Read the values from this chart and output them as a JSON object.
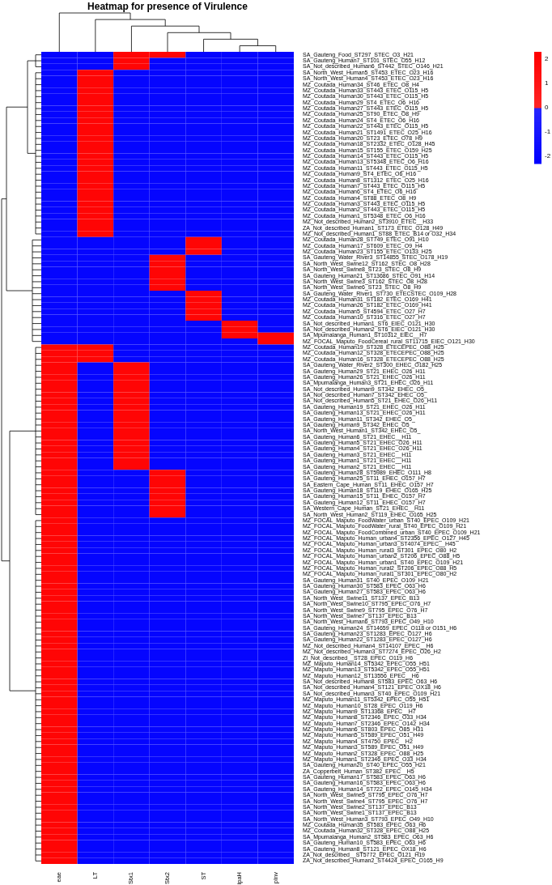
{
  "chart_data": {
    "type": "heatmap",
    "title": "Heatmap for presence of Virulence",
    "categories": [
      "eae",
      "LT",
      "Stx1",
      "Stx2",
      "ST",
      "ipaH",
      "pInv"
    ],
    "y_categories": [
      "SA_Gauteng_Food_ST297_STEC_O3_H21",
      "SA_Gauteng_Human7_ST101_STEC_O55_H12",
      "SA_Not_described_Human6_ST442_STEC_O146_H21",
      "SA_North_West_Human5_ST453_ETEC_O23_H16",
      "SA_North_West_Human4_ST453_ETEC_O23_H16",
      "MZ_Coutada_Human34_ST46_ETEC_O8_H4",
      "MZ_Coutada_Human33_ST443_ETEC_O115_H5",
      "MZ_Coutada_Human30_ST443_ETEC_O115_H5",
      "MZ_Coutada_Human29_ST4_ETEC_O6_H16",
      "MZ_Coutada_Human27_ST443_ETEC_O115_H5",
      "MZ_Coutada_Human25_ST90_ETEC_O8_H9",
      "MZ_Coutada_Human24_ST4_ETEC_O6_H16",
      "MZ_Coutada_Human22_ST443_ETEC_O115_H5",
      "MZ_Coutada_Human21_ST1491_ETEC_O25_H16",
      "MZ_Coutada_Human20_ST23_ETEC_O78_H9",
      "MZ_Coutada_Human18_ST2332_ETEC_O128_H45",
      "MZ_Coutada_Human15_ST155_ETEC_O159_H25",
      "MZ_Coutada_Human14_ST443_ETEC_O115_H5",
      "MZ_Coutada_Human13_ST5348_ETEC_O6_H16",
      "MZ_Coutada_Human11_ST443_ETEC_O115_H5",
      "MZ_Coutada_Human9_ST4_ETEC_O6_H16",
      "MZ_Coutada_Human8_ST1312_ETEC_O25_H16",
      "MZ_Coutada_Human7_ST443_ETEC_O115_H5",
      "MZ_Coutada_Human6_ST4_ETEC_O6_H16",
      "MZ_Coutada_Human4_ST88_ETEC_O8_H9",
      "MZ_Coutada_Human3_ST443_ETEC_O115_H5",
      "MZ_Coutada_Human2_ST443_ETEC_O115_H5",
      "MZ_Coutada_Human1_ST5348_ETEC_O6_H16",
      "MZ_Not_described_Human2_ST3910_ETEC__H33",
      "ZA_Not_described_Human1_ST173_ETEC_O128_H49",
      "MZ_Not_described_Human1_ST88_ETEC_B14 or O32_H34",
      "MZ_Coutada_Human28_ST749_ETEC_O91_H10",
      "MZ_Coutada_Human17_ST609_ETEC_O9_H4",
      "MZ_Coutada_Human23_ST155_ETEC_O133_H25",
      "SA_Gauteng_Water_River3_ST14855_STEC_O178_H19",
      "SA_North_West_Swine12_ST162_STEC_O8_H28",
      "SA_North_West_Swine8_ST23_STEC_O8_H9",
      "SA_Gauteng_Human21_ST13686_STEC_O91_H14",
      "SA_North_West_Swine3_ST162_STEC_O8_H28",
      "SA_North_West_Swine6_ST23_STEC_O8_H9",
      "SA_Gauteng_Water_River1_ST730_ETECSTEC_O109_H28",
      "MZ_Coutada_Human31_ST182_ETEC_O169_H41",
      "MZ_Coutada_Human26_ST182_ETEC_O169_H41",
      "MZ_Coutada_Human5_ST4594_ETEC_O27_H7",
      "MZ_Coutada_Human10_ST316_ETEC_O27_H7",
      "SA_Not_described_Human1_ST6_EIEC_O121_H30",
      "SA_Not_described_Human2_ST6_EIEC_O121_H30",
      "SA_Mpumalanga_Human1_ST10312_EIEC__H7",
      "MZ_FOCAL_Maputo_FoodCereal_rural_ST11715_EIEC_O121_H30",
      "MZ_Coutada_Human19_ST328_ETECEPEC_O88_H25",
      "MZ_Coutada_Human12_ST328_ETECEPEC_O88_H25",
      "MZ_Coutada_Human16_ST328_ETECEPEC_O88_H25",
      "SA_Gauteng_Water_River2_ST300_EHEC_O182_H25",
      "SA_Gauteng_Human29_ST21_EHEC_O26_H11",
      "SA_Gauteng_Human26_ST21_EHEC_O26_H11",
      "SA_Mpumalanga_Human3_ST21_EHEC_O26_H11",
      "SA_Not_described_Human9_ST342_EHEC_O5_",
      "SA_Not_described_Human7_ST342_EHEC_O5_",
      "SA_Not_described_Human5_ST21_EHEC_O26_H11",
      "SA_Gauteng_Human19_ST21_EHEC_O26_H11",
      "SA_Gauteng_Human13_ST21_EHEC_O26_H11",
      "SA_Gauteng_Human11_ST342_EHEC_O5_",
      "SA_Gauteng_Human9_ST342_EHEC_O5_",
      "SA_North_West_Human1_ST342_EHEC_O5_",
      "SA_Gauteng_Human6_ST21_EHEC__H11",
      "SA_Gauteng_Human5_ST21_EHEC_O26_H11",
      "SA_Gauteng_Human4_ST21_EHEC_O26_H11",
      "SA_Gauteng_Human3_ST21_EHEC__H11",
      "SA_Gauteng_Human1_ST21_EHEC__H11",
      "SA_Gauteng_Human2_ST21_EHEC__H11",
      "SA_Gauteng_Human28_ST5989_EHEC_O111_H8",
      "SA_Gauteng_Human25_ST11_EHEC_O157_H7",
      "SA_Eastern_Cape_Human_ST11_EHEC_O157_H7",
      "SA_Gauteng_Human18_ST119_EHEC_O165_H25",
      "SA_Gauteng_Human15_ST11_EHEC_O157_H7",
      "SA_Gauteng_Human12_ST11_EHEC_O157_H7",
      "SA_Western_Cape_Human_ST21_EHEC__H11",
      "SA_North_West_Human2_ST119_EHEC_O165_H25",
      "MZ_FOCAL_Maputo_FoodWater_urban_ST40_EPEC_O109_H21",
      "MZ_FOCAL_Maputo_FoodWater_rural_ST40_EPEC_O109_H21",
      "MZ_FOCAL_Maputo_FoodCombined_urban_ST40_EPEC_O109_H21",
      "MZ_FOCAL_Maputo_Human_urban4_ST2356_EPEC_O127_H45",
      "MZ_FOCAL_Maputo_Human_urban3_ST4074_EPEC__H45",
      "MZ_FOCAL_Maputo_Human_rural3_ST301_EPEC_O80_H2",
      "MZ_FOCAL_Maputo_Human_urban2_ST206_EPEC_O88_H5",
      "MZ_FOCAL_Maputo_Human_urban1_ST40_EPEC_O109_H21",
      "MZ_FOCAL_Maputo_Human_rural2_ST206_EPEC_O88_H5",
      "MZ_FOCAL_Maputo_Human_rural1_ST301_EPEC_O80_H2",
      "SA_Gauteng_Human31_ST40_EPEC_O109_H21",
      "SA_Gauteng_Human30_ST583_EPEC_O63_H6",
      "SA_Gauteng_Human27_ST583_EPEC_O63_H6",
      "SA_North_West_Swine11_ST137_EPEC_B13",
      "SA_North_West_Swine10_ST795_EPEC_O76_H7",
      "SA_North_West_Swine9_ST795_EPEC_O76_H7",
      "SA_North_West_Swine7_ST137_EPEC_B13",
      "SA_North_West_Human6_ST793_EPEC_O49_H10",
      "SA_Gauteng_Human24_ST14659_EPEC_O118 or O151_H6",
      "SA_Gauteng_Human23_ST1283_EPEC_O127_H6",
      "SA_Gauteng_Human22_ST1283_EPEC_O127_H6",
      "MZ_Not_described_Human4_ST14107_EPEC__H6",
      "MZ_Not_described_Human3_ST7274_EPEC_O26_H2",
      "ZI_Not_described__ST28_EPEC_O119_H6",
      "MZ_Maputo_Human14_ST5342_EPEC_O55_H51",
      "MZ_Maputo_Human13_ST5342_EPEC_O55_H51",
      "MZ_Maputo_Human12_ST13556_EPEC__H6",
      "SA_Not_described_Human8_ST583_EPEC_O63_H6",
      "SA_Not_described_Human4_ST121_EPEC_OX18_H6",
      "SA_Not_described_Human3_ST40_EPEC_O109_H21",
      "MZ_Maputo_Human11_ST5342_EPEC_O55_H51",
      "MZ_Maputo_Human10_ST28_EPEC_O119_H6",
      "MZ_Maputo_Human9_ST13368_EPEC__H7",
      "MZ_Maputo_Human8_ST2346_EPEC_O33_H34",
      "MZ_Maputo_Human7_ST2346_EPEC_O142_H34",
      "MZ_Maputo_Human6_ST803_EPEC_O85_H31",
      "MZ_Maputo_Human5_ST589_EPEC_O51_H49",
      "MZ_Maputo_Human4_ST4750_EPEC__H2",
      "MZ_Maputo_Human3_ST589_EPEC_O51_H49",
      "MZ_Maputo_Human2_ST328_EPEC_O88_H25",
      "MZ_Maputo_Human1_ST2346_EPEC_O33_H34",
      "SA_Gauteng_Human20_ST40_EPEC_O55_H21",
      "ZA_Copperbelt_Human_ST382_EPEC__H5",
      "SA_Gauteng_Human17_ST583_EPEC_O63_H6",
      "SA_Gauteng_Human16_ST583_EPEC_O63_H6",
      "SA_Gauteng_Human14_ST722_EPEC_O145_H34",
      "SA_North_West_Swine5_ST795_EPEC_O76_H7",
      "SA_North_West_Swine4_ST795_EPEC_O76_H7",
      "SA_North_West_Swine2_ST137_EPEC_B13",
      "SA_North_West_Swine1_ST137_EPEC_B13",
      "SA_North_West_Human3_ST793_EPEC_O49_H10",
      "MZ_Coutada_Human35_ST583_EPEC_O63_H6",
      "MZ_Coutada_Human32_ST328_EPEC_O88_H25",
      "SA_Mpumalanga_Human2_ST583_EPEC_O63_H6",
      "SA_Gauteng_Human10_ST583_EPEC_O63_H6",
      "SA_Gauteng_Human8_ST121_EPEC_OX18_H6",
      "ZA_Not_described__ST5772_EPEC_O121_H19",
      "ZA_Not_described_Human2_ST4424_EPEC_O165_H9"
    ],
    "cells": [
      [
        -2,
        -2,
        2,
        2,
        -2,
        -2,
        -2
      ],
      [
        -2,
        -2,
        2,
        -2,
        -2,
        -2,
        -2
      ],
      [
        -2,
        -2,
        2,
        -2,
        -2,
        -2,
        -2
      ],
      [
        -2,
        2,
        -2,
        -2,
        -2,
        -2,
        -2
      ],
      [
        -2,
        2,
        -2,
        -2,
        -2,
        -2,
        -2
      ],
      [
        -2,
        2,
        -2,
        -2,
        -2,
        -2,
        -2
      ],
      [
        -2,
        2,
        -2,
        -2,
        -2,
        -2,
        -2
      ],
      [
        -2,
        2,
        -2,
        -2,
        -2,
        -2,
        -2
      ],
      [
        -2,
        2,
        -2,
        -2,
        -2,
        -2,
        -2
      ],
      [
        -2,
        2,
        -2,
        -2,
        -2,
        -2,
        -2
      ],
      [
        -2,
        2,
        -2,
        -2,
        -2,
        -2,
        -2
      ],
      [
        -2,
        2,
        -2,
        -2,
        -2,
        -2,
        -2
      ],
      [
        -2,
        2,
        -2,
        -2,
        -2,
        -2,
        -2
      ],
      [
        -2,
        2,
        -2,
        -2,
        -2,
        -2,
        -2
      ],
      [
        -2,
        2,
        -2,
        -2,
        -2,
        -2,
        -2
      ],
      [
        -2,
        2,
        -2,
        -2,
        -2,
        -2,
        -2
      ],
      [
        -2,
        2,
        -2,
        -2,
        -2,
        -2,
        -2
      ],
      [
        -2,
        2,
        -2,
        -2,
        -2,
        -2,
        -2
      ],
      [
        -2,
        2,
        -2,
        -2,
        -2,
        -2,
        -2
      ],
      [
        -2,
        2,
        -2,
        -2,
        -2,
        -2,
        -2
      ],
      [
        -2,
        2,
        -2,
        -2,
        -2,
        -2,
        -2
      ],
      [
        -2,
        2,
        -2,
        -2,
        -2,
        -2,
        -2
      ],
      [
        -2,
        2,
        -2,
        -2,
        -2,
        -2,
        -2
      ],
      [
        -2,
        2,
        -2,
        -2,
        -2,
        -2,
        -2
      ],
      [
        -2,
        2,
        -2,
        -2,
        -2,
        -2,
        -2
      ],
      [
        -2,
        2,
        -2,
        -2,
        -2,
        -2,
        -2
      ],
      [
        -2,
        2,
        -2,
        -2,
        -2,
        -2,
        -2
      ],
      [
        -2,
        2,
        -2,
        -2,
        -2,
        -2,
        -2
      ],
      [
        -2,
        2,
        -2,
        -2,
        -2,
        -2,
        -2
      ],
      [
        -2,
        2,
        -2,
        -2,
        -2,
        -2,
        -2
      ],
      [
        -2,
        2,
        -2,
        -2,
        -2,
        -2,
        -2
      ],
      [
        -2,
        -2,
        -2,
        -2,
        2,
        -2,
        -2
      ],
      [
        -2,
        -2,
        -2,
        -2,
        2,
        -2,
        -2
      ],
      [
        -2,
        -2,
        -2,
        -2,
        2,
        -2,
        -2
      ],
      [
        -2,
        -2,
        -2,
        2,
        -2,
        -2,
        -2
      ],
      [
        -2,
        -2,
        -2,
        2,
        -2,
        -2,
        -2
      ],
      [
        -2,
        -2,
        -2,
        2,
        -2,
        -2,
        -2
      ],
      [
        -2,
        -2,
        -2,
        2,
        -2,
        -2,
        -2
      ],
      [
        -2,
        -2,
        -2,
        2,
        -2,
        -2,
        -2
      ],
      [
        -2,
        -2,
        -2,
        2,
        -2,
        -2,
        -2
      ],
      [
        -2,
        -2,
        -2,
        -2,
        2,
        -2,
        -2
      ],
      [
        -2,
        -2,
        -2,
        -2,
        2,
        -2,
        -2
      ],
      [
        -2,
        -2,
        -2,
        -2,
        2,
        -2,
        -2
      ],
      [
        -2,
        -2,
        -2,
        -2,
        2,
        -2,
        -2
      ],
      [
        -2,
        -2,
        -2,
        -2,
        2,
        -2,
        -2
      ],
      [
        -2,
        -2,
        -2,
        -2,
        -2,
        2,
        -2
      ],
      [
        -2,
        -2,
        -2,
        -2,
        -2,
        2,
        -2
      ],
      [
        -2,
        -2,
        -2,
        -2,
        -2,
        2,
        2
      ],
      [
        -2,
        -2,
        -2,
        -2,
        -2,
        -2,
        2
      ],
      [
        2,
        2,
        -2,
        -2,
        -2,
        -2,
        -2
      ],
      [
        2,
        2,
        -2,
        -2,
        -2,
        -2,
        -2
      ],
      [
        2,
        2,
        -2,
        -2,
        -2,
        -2,
        -2
      ],
      [
        2,
        -2,
        2,
        -2,
        -2,
        -2,
        -2
      ],
      [
        2,
        -2,
        2,
        -2,
        -2,
        -2,
        -2
      ],
      [
        2,
        -2,
        2,
        -2,
        -2,
        -2,
        -2
      ],
      [
        2,
        -2,
        2,
        -2,
        -2,
        -2,
        -2
      ],
      [
        2,
        -2,
        2,
        -2,
        -2,
        -2,
        -2
      ],
      [
        2,
        -2,
        2,
        -2,
        -2,
        -2,
        -2
      ],
      [
        2,
        -2,
        2,
        -2,
        -2,
        -2,
        -2
      ],
      [
        2,
        -2,
        2,
        -2,
        -2,
        -2,
        -2
      ],
      [
        2,
        -2,
        2,
        -2,
        -2,
        -2,
        -2
      ],
      [
        2,
        -2,
        2,
        -2,
        -2,
        -2,
        -2
      ],
      [
        2,
        -2,
        2,
        -2,
        -2,
        -2,
        -2
      ],
      [
        2,
        -2,
        2,
        -2,
        -2,
        -2,
        -2
      ],
      [
        2,
        -2,
        2,
        -2,
        -2,
        -2,
        -2
      ],
      [
        2,
        -2,
        2,
        -2,
        -2,
        -2,
        -2
      ],
      [
        2,
        -2,
        2,
        -2,
        -2,
        -2,
        -2
      ],
      [
        2,
        -2,
        2,
        -2,
        -2,
        -2,
        -2
      ],
      [
        2,
        -2,
        2,
        -2,
        -2,
        -2,
        -2
      ],
      [
        2,
        -2,
        2,
        -2,
        -2,
        -2,
        -2
      ],
      [
        2,
        -2,
        -2,
        2,
        -2,
        -2,
        -2
      ],
      [
        2,
        -2,
        -2,
        2,
        -2,
        -2,
        -2
      ],
      [
        2,
        -2,
        -2,
        2,
        -2,
        -2,
        -2
      ],
      [
        2,
        -2,
        -2,
        2,
        -2,
        -2,
        -2
      ],
      [
        2,
        -2,
        -2,
        2,
        -2,
        -2,
        -2
      ],
      [
        2,
        -2,
        -2,
        2,
        -2,
        -2,
        -2
      ],
      [
        2,
        -2,
        -2,
        2,
        -2,
        -2,
        -2
      ],
      [
        2,
        -2,
        -2,
        2,
        -2,
        -2,
        -2
      ],
      [
        2,
        -2,
        -2,
        -2,
        -2,
        -2,
        -2
      ],
      [
        2,
        -2,
        -2,
        -2,
        -2,
        -2,
        -2
      ],
      [
        2,
        -2,
        -2,
        -2,
        -2,
        -2,
        -2
      ],
      [
        2,
        -2,
        -2,
        -2,
        -2,
        -2,
        -2
      ],
      [
        2,
        -2,
        -2,
        -2,
        -2,
        -2,
        -2
      ],
      [
        2,
        -2,
        -2,
        -2,
        -2,
        -2,
        -2
      ],
      [
        2,
        -2,
        -2,
        -2,
        -2,
        -2,
        -2
      ],
      [
        2,
        -2,
        -2,
        -2,
        -2,
        -2,
        -2
      ],
      [
        2,
        -2,
        -2,
        -2,
        -2,
        -2,
        -2
      ],
      [
        2,
        -2,
        -2,
        -2,
        -2,
        -2,
        -2
      ],
      [
        2,
        -2,
        -2,
        -2,
        -2,
        -2,
        -2
      ],
      [
        2,
        -2,
        -2,
        -2,
        -2,
        -2,
        -2
      ],
      [
        2,
        -2,
        -2,
        -2,
        -2,
        -2,
        -2
      ],
      [
        2,
        -2,
        -2,
        -2,
        -2,
        -2,
        -2
      ],
      [
        2,
        -2,
        -2,
        -2,
        -2,
        -2,
        -2
      ],
      [
        2,
        -2,
        -2,
        -2,
        -2,
        -2,
        -2
      ],
      [
        2,
        -2,
        -2,
        -2,
        -2,
        -2,
        -2
      ],
      [
        2,
        -2,
        -2,
        -2,
        -2,
        -2,
        -2
      ],
      [
        2,
        -2,
        -2,
        -2,
        -2,
        -2,
        -2
      ],
      [
        2,
        -2,
        -2,
        -2,
        -2,
        -2,
        -2
      ],
      [
        2,
        -2,
        -2,
        -2,
        -2,
        -2,
        -2
      ],
      [
        2,
        -2,
        -2,
        -2,
        -2,
        -2,
        -2
      ],
      [
        2,
        -2,
        -2,
        -2,
        -2,
        -2,
        -2
      ],
      [
        2,
        -2,
        -2,
        -2,
        -2,
        -2,
        -2
      ],
      [
        2,
        -2,
        -2,
        -2,
        -2,
        -2,
        -2
      ],
      [
        2,
        -2,
        -2,
        -2,
        -2,
        -2,
        -2
      ],
      [
        2,
        -2,
        -2,
        -2,
        -2,
        -2,
        -2
      ],
      [
        2,
        -2,
        -2,
        -2,
        -2,
        -2,
        -2
      ],
      [
        2,
        -2,
        -2,
        -2,
        -2,
        -2,
        -2
      ],
      [
        2,
        -2,
        -2,
        -2,
        -2,
        -2,
        -2
      ],
      [
        2,
        -2,
        -2,
        -2,
        -2,
        -2,
        -2
      ],
      [
        2,
        -2,
        -2,
        -2,
        -2,
        -2,
        -2
      ],
      [
        2,
        -2,
        -2,
        -2,
        -2,
        -2,
        -2
      ],
      [
        2,
        -2,
        -2,
        -2,
        -2,
        -2,
        -2
      ],
      [
        2,
        -2,
        -2,
        -2,
        -2,
        -2,
        -2
      ],
      [
        2,
        -2,
        -2,
        -2,
        -2,
        -2,
        -2
      ],
      [
        2,
        -2,
        -2,
        -2,
        -2,
        -2,
        -2
      ],
      [
        2,
        -2,
        -2,
        -2,
        -2,
        -2,
        -2
      ],
      [
        2,
        -2,
        -2,
        -2,
        -2,
        -2,
        -2
      ],
      [
        2,
        -2,
        -2,
        -2,
        -2,
        -2,
        -2
      ],
      [
        2,
        -2,
        -2,
        -2,
        -2,
        -2,
        -2
      ],
      [
        2,
        -2,
        -2,
        -2,
        -2,
        -2,
        -2
      ],
      [
        2,
        -2,
        -2,
        -2,
        -2,
        -2,
        -2
      ],
      [
        2,
        -2,
        -2,
        -2,
        -2,
        -2,
        -2
      ],
      [
        2,
        -2,
        -2,
        -2,
        -2,
        -2,
        -2
      ],
      [
        2,
        -2,
        -2,
        -2,
        -2,
        -2,
        -2
      ],
      [
        2,
        -2,
        -2,
        -2,
        -2,
        -2,
        -2
      ],
      [
        2,
        -2,
        -2,
        -2,
        -2,
        -2,
        -2
      ],
      [
        2,
        -2,
        -2,
        -2,
        -2,
        -2,
        -2
      ],
      [
        2,
        -2,
        -2,
        -2,
        -2,
        -2,
        -2
      ],
      [
        2,
        -2,
        -2,
        -2,
        -2,
        -2,
        -2
      ],
      [
        2,
        -2,
        -2,
        -2,
        -2,
        -2,
        -2
      ],
      [
        2,
        -2,
        -2,
        -2,
        -2,
        -2,
        -2
      ],
      [
        2,
        -2,
        -2,
        -2,
        -2,
        -2,
        -2
      ],
      [
        2,
        -2,
        -2,
        -2,
        -2,
        -2,
        -2
      ],
      [
        2,
        -2,
        -2,
        -2,
        -2,
        -2,
        -2
      ],
      [
        2,
        -2,
        -2,
        -2,
        -2,
        -2,
        -2
      ],
      [
        2,
        -2,
        -2,
        -2,
        -2,
        -2,
        -2
      ]
    ],
    "colors": [
      "#0000ff",
      "#ff0000"
    ],
    "clim": [
      -2.3,
      2.3
    ],
    "cticks": [
      -2,
      -1,
      0,
      1,
      2
    ]
  }
}
